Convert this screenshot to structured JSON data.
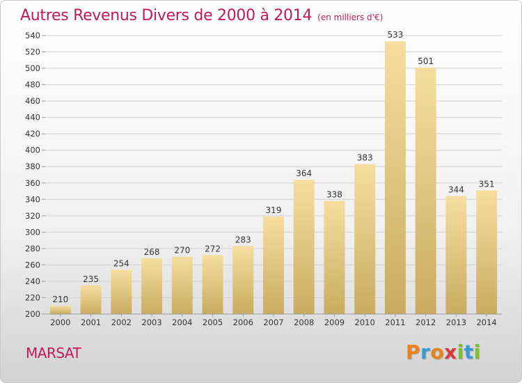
{
  "header": {
    "title": "Autres Revenus Divers de 2000 à 2014",
    "unit": "(en milliers d'€)"
  },
  "footer": {
    "commune": "MARSAT",
    "brand_letters": [
      "P",
      "r",
      "o",
      "x",
      "i",
      "t",
      "i"
    ],
    "brand_colors": [
      "#e8821e",
      "#3a9ad9",
      "#e8821e",
      "#d63a3a",
      "#7bbf2a",
      "#3a9ad9",
      "#7bbf2a"
    ]
  },
  "colors": {
    "title": "#c2185b",
    "bar_light": "#f6dea0",
    "bar_dark": "#c9ac60",
    "grid": "#d0d0d0"
  },
  "chart_data": {
    "type": "bar",
    "title": "Autres Revenus Divers de 2000 à 2014",
    "subtitle": "(en milliers d'€)",
    "categories": [
      "2000",
      "2001",
      "2002",
      "2003",
      "2004",
      "2005",
      "2006",
      "2007",
      "2008",
      "2009",
      "2010",
      "2011",
      "2012",
      "2013",
      "2014"
    ],
    "values": [
      210,
      235,
      254,
      268,
      270,
      272,
      283,
      319,
      364,
      338,
      383,
      533,
      501,
      344,
      351
    ],
    "ylim": [
      200,
      540
    ],
    "yticks": [
      200,
      220,
      240,
      260,
      280,
      300,
      320,
      340,
      360,
      380,
      400,
      420,
      440,
      460,
      480,
      500,
      520,
      540
    ],
    "grid": true,
    "data_labels": true
  }
}
